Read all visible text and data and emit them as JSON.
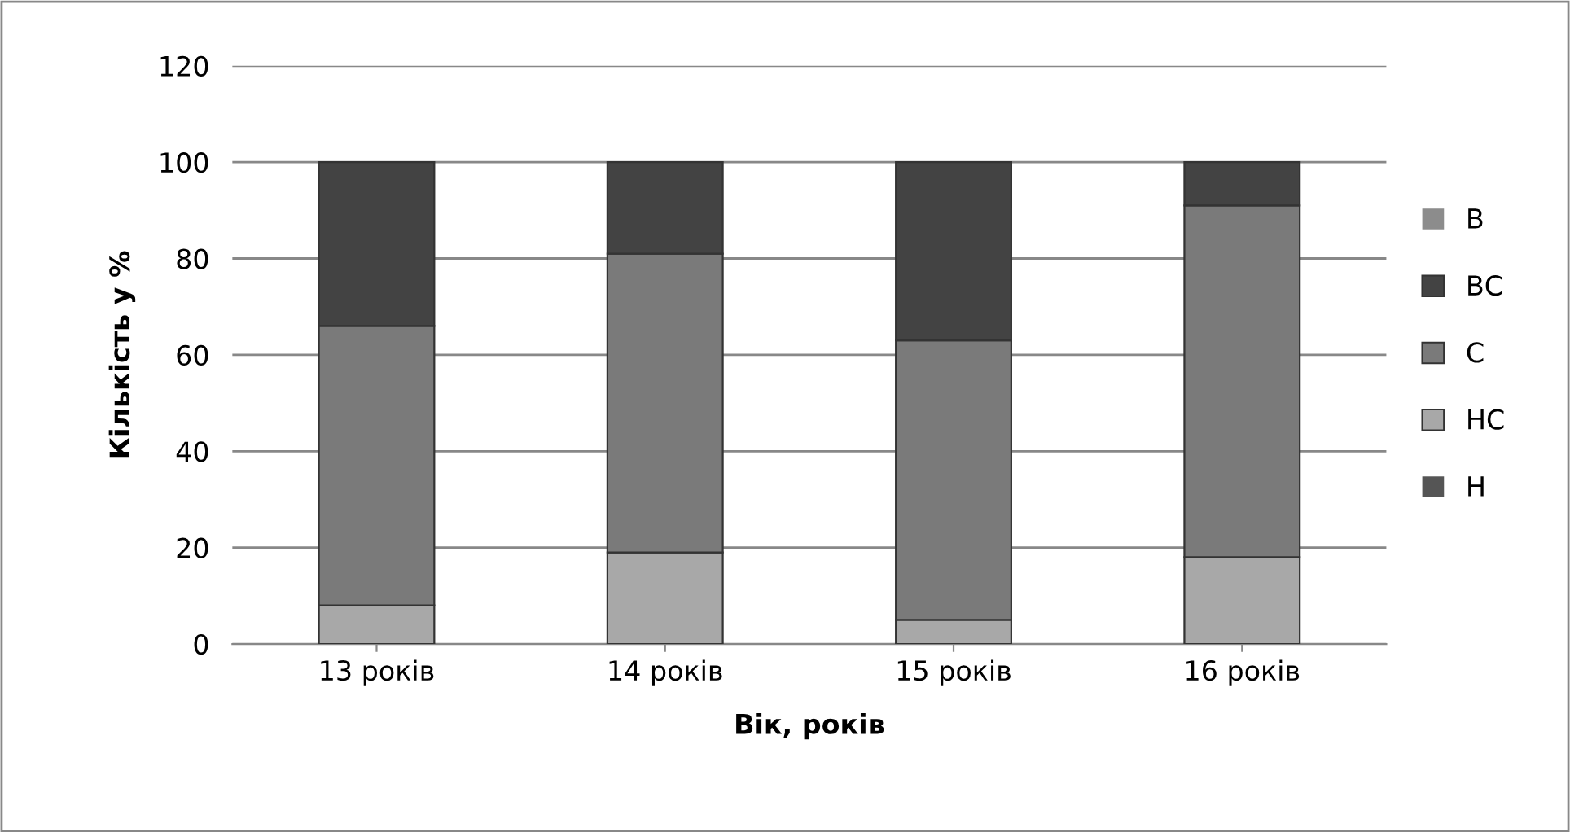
{
  "chart_data": {
    "type": "bar",
    "stacked": true,
    "xlabel": "Вік, років",
    "ylabel": "Кількість у %",
    "categories": [
      "13 років",
      "14 років",
      "15 років",
      "16 років"
    ],
    "series": [
      {
        "name": "Н",
        "color": "#555555",
        "values": [
          0,
          0,
          0,
          0
        ]
      },
      {
        "name": "НС",
        "color": "#a8a8a8",
        "values": [
          8,
          19,
          5,
          18
        ]
      },
      {
        "name": "С",
        "color": "#7a7a7a",
        "values": [
          58,
          62,
          58,
          73
        ]
      },
      {
        "name": "ВС",
        "color": "#434343",
        "values": [
          34,
          19,
          37,
          9
        ]
      },
      {
        "name": "В",
        "color": "#8c8c8c",
        "values": [
          0,
          0,
          0,
          0
        ]
      }
    ],
    "ylim": [
      0,
      120
    ],
    "yticks": [
      0,
      20,
      40,
      60,
      80,
      100,
      120
    ],
    "grid": "y",
    "legend": "right"
  }
}
